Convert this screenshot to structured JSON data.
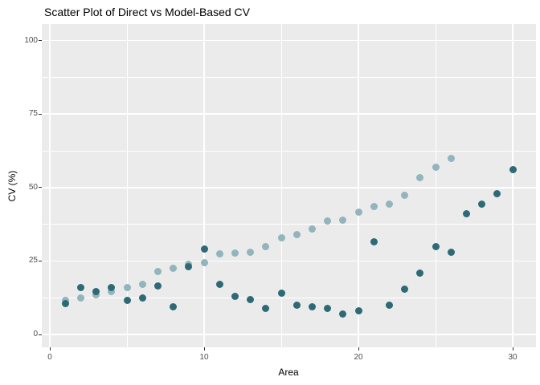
{
  "chart_data": {
    "type": "scatter",
    "title": "Scatter Plot of Direct vs Model-Based CV",
    "xlabel": "Area",
    "ylabel": "CV (%)",
    "xlim": [
      0,
      30
    ],
    "ylim": [
      0,
      100
    ],
    "x_major_ticks": [
      0,
      10,
      20,
      30
    ],
    "x_minor_ticks": [
      5,
      15,
      25
    ],
    "y_major_ticks": [
      0,
      25,
      50,
      75,
      100
    ],
    "y_minor_ticks": [
      12.5,
      37.5,
      62.5,
      87.5
    ],
    "grid": "white major and minor gridlines on gray panel",
    "legend": "none",
    "panel_background": "#EBEBEB",
    "tick_label_color": "#4D4D4D",
    "series": [
      {
        "name": "light-blue-series",
        "color": "#92B4BC",
        "points": [
          [
            1,
            11.5
          ],
          [
            2,
            12.5
          ],
          [
            3,
            13.5
          ],
          [
            4,
            14.5
          ],
          [
            5,
            16
          ],
          [
            6,
            17
          ],
          [
            7,
            21.5
          ],
          [
            8,
            22.5
          ],
          [
            9,
            24
          ],
          [
            10,
            24.5
          ],
          [
            11,
            27.5
          ],
          [
            12,
            27.7
          ],
          [
            13,
            28
          ],
          [
            14,
            30
          ],
          [
            15,
            33
          ],
          [
            16,
            34
          ],
          [
            17,
            36
          ],
          [
            18,
            38.5
          ],
          [
            19,
            39
          ],
          [
            20,
            41.5
          ],
          [
            21,
            43.5
          ],
          [
            22,
            44.5
          ],
          [
            23,
            47.5
          ],
          [
            24,
            53.5
          ],
          [
            25,
            57
          ],
          [
            26,
            60
          ]
        ]
      },
      {
        "name": "dark-teal-series",
        "color": "#2D6A76",
        "points": [
          [
            1,
            10.5
          ],
          [
            2,
            16
          ],
          [
            3,
            14.5
          ],
          [
            4,
            16
          ],
          [
            5,
            11.5
          ],
          [
            6,
            12.5
          ],
          [
            7,
            16.5
          ],
          [
            8,
            9.5
          ],
          [
            9,
            23
          ],
          [
            10,
            29
          ],
          [
            11,
            17
          ],
          [
            12,
            13
          ],
          [
            13,
            12
          ],
          [
            14,
            9
          ],
          [
            15,
            14
          ],
          [
            16,
            10
          ],
          [
            17,
            9.5
          ],
          [
            18,
            9
          ],
          [
            19,
            7
          ],
          [
            20,
            8
          ],
          [
            21,
            31.5
          ],
          [
            22,
            10
          ],
          [
            23,
            15.5
          ],
          [
            24,
            21
          ],
          [
            25,
            30
          ],
          [
            26,
            28
          ],
          [
            27,
            41
          ],
          [
            28,
            44.5
          ],
          [
            29,
            48
          ],
          [
            30,
            56
          ]
        ]
      }
    ]
  }
}
